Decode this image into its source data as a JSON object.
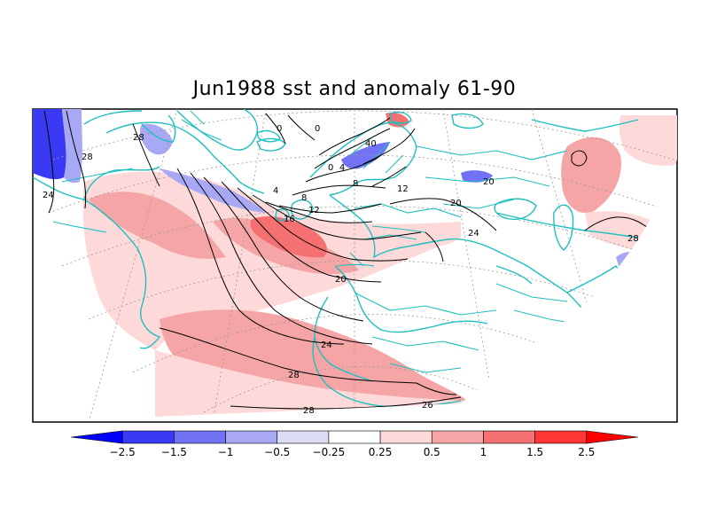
{
  "title": "Jun1988 sst and anomaly 61-90",
  "colors": {
    "coast": "#1fbfbf",
    "contour": "#000000",
    "land": "#ffffff",
    "ocean": "#ffffff",
    "grid": "#9a9a9a"
  },
  "colorbar": {
    "bins": [
      {
        "color": "#0000ff",
        "shape": "arrow-left"
      },
      {
        "color": "#3a3af5"
      },
      {
        "color": "#7272f5"
      },
      {
        "color": "#a8a8f5"
      },
      {
        "color": "#dcdcf7"
      },
      {
        "color": "#ffffff"
      },
      {
        "color": "#fdd9d9"
      },
      {
        "color": "#f5a5a5"
      },
      {
        "color": "#f57070"
      },
      {
        "color": "#ff3535"
      },
      {
        "color": "#ff0000",
        "shape": "arrow-right"
      }
    ],
    "tick_labels": [
      "−2.5",
      "−1.5",
      "−1",
      "−0.5",
      "−0.25",
      "0.25",
      "0.5",
      "1",
      "1.5",
      "2.5"
    ]
  },
  "contour_labels": [
    "28",
    "24",
    "28",
    "4",
    "8",
    "12",
    "16",
    "20",
    "24",
    "28",
    "28",
    "40",
    "0",
    "4",
    "8",
    "12",
    "20",
    "24",
    "28",
    "0",
    "0",
    "20",
    "26"
  ]
}
